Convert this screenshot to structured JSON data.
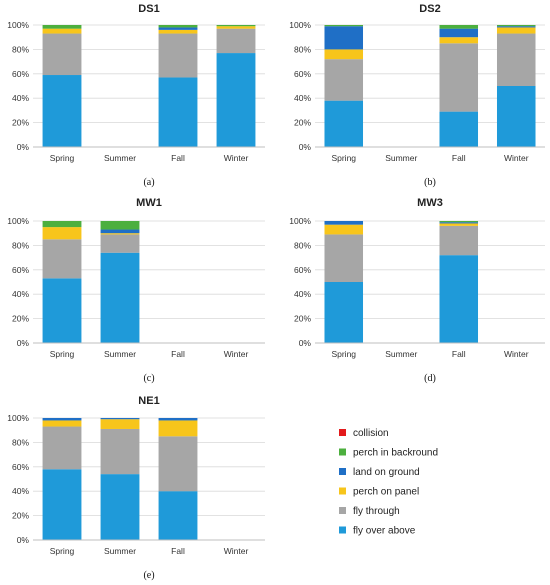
{
  "chart_data": [
    {
      "type": "bar",
      "stacked": true,
      "title": "DS1",
      "panel_label": "(a)",
      "categories": [
        "Spring",
        "Summer",
        "Fall",
        "Winter"
      ],
      "yticks": [
        "0%",
        "20%",
        "40%",
        "60%",
        "80%",
        "100%"
      ],
      "ylim": [
        0,
        100
      ],
      "series": [
        {
          "name": "fly over above",
          "values": [
            59,
            0,
            57,
            77
          ]
        },
        {
          "name": "fly through",
          "values": [
            34,
            0,
            36,
            20
          ]
        },
        {
          "name": "perch on panel",
          "values": [
            4,
            0,
            3,
            2
          ]
        },
        {
          "name": "land on ground",
          "values": [
            0,
            0,
            2,
            0
          ]
        },
        {
          "name": "perch in backround",
          "values": [
            3,
            0,
            2,
            1
          ]
        },
        {
          "name": "collision",
          "values": [
            0,
            0,
            0,
            0
          ]
        }
      ]
    },
    {
      "type": "bar",
      "stacked": true,
      "title": "DS2",
      "panel_label": "(b)",
      "categories": [
        "Spring",
        "Summer",
        "Fall",
        "Winter"
      ],
      "yticks": [
        "0%",
        "20%",
        "40%",
        "60%",
        "80%",
        "100%"
      ],
      "ylim": [
        0,
        100
      ],
      "series": [
        {
          "name": "fly over above",
          "values": [
            38,
            0,
            29,
            50
          ]
        },
        {
          "name": "fly through",
          "values": [
            34,
            0,
            56,
            43
          ]
        },
        {
          "name": "perch on panel",
          "values": [
            8,
            0,
            5,
            5
          ]
        },
        {
          "name": "land on ground",
          "values": [
            19,
            0,
            7,
            1
          ]
        },
        {
          "name": "perch in backround",
          "values": [
            1,
            0,
            3,
            1
          ]
        },
        {
          "name": "collision",
          "values": [
            0,
            0,
            0,
            0
          ]
        }
      ]
    },
    {
      "type": "bar",
      "stacked": true,
      "title": "MW1",
      "panel_label": "(c)",
      "categories": [
        "Spring",
        "Summer",
        "Fall",
        "Winter"
      ],
      "yticks": [
        "0%",
        "20%",
        "40%",
        "60%",
        "80%",
        "100%"
      ],
      "ylim": [
        0,
        100
      ],
      "series": [
        {
          "name": "fly over above",
          "values": [
            53,
            74,
            0,
            0
          ]
        },
        {
          "name": "fly through",
          "values": [
            32,
            15,
            0,
            0
          ]
        },
        {
          "name": "perch on panel",
          "values": [
            10,
            1,
            0,
            0
          ]
        },
        {
          "name": "land on ground",
          "values": [
            0,
            3,
            0,
            0
          ]
        },
        {
          "name": "perch in backround",
          "values": [
            5,
            7,
            0,
            0
          ]
        },
        {
          "name": "collision",
          "values": [
            0,
            0,
            0,
            0
          ]
        }
      ]
    },
    {
      "type": "bar",
      "stacked": true,
      "title": "MW3",
      "panel_label": "(d)",
      "categories": [
        "Spring",
        "Summer",
        "Fall",
        "Winter"
      ],
      "yticks": [
        "0%",
        "20%",
        "40%",
        "60%",
        "80%",
        "100%"
      ],
      "ylim": [
        0,
        100
      ],
      "series": [
        {
          "name": "fly over above",
          "values": [
            50,
            0,
            72,
            0
          ]
        },
        {
          "name": "fly through",
          "values": [
            39,
            0,
            24,
            0
          ]
        },
        {
          "name": "perch on panel",
          "values": [
            8,
            0,
            2,
            0
          ]
        },
        {
          "name": "land on ground",
          "values": [
            3,
            0,
            1,
            0
          ]
        },
        {
          "name": "perch in backround",
          "values": [
            0,
            0,
            1,
            0
          ]
        },
        {
          "name": "collision",
          "values": [
            0,
            0,
            0,
            0
          ]
        }
      ]
    },
    {
      "type": "bar",
      "stacked": true,
      "title": "NE1",
      "panel_label": "(e)",
      "categories": [
        "Spring",
        "Summer",
        "Fall",
        "Winter"
      ],
      "yticks": [
        "0%",
        "20%",
        "40%",
        "60%",
        "80%",
        "100%"
      ],
      "ylim": [
        0,
        100
      ],
      "series": [
        {
          "name": "fly over above",
          "values": [
            58,
            54,
            40,
            0
          ]
        },
        {
          "name": "fly through",
          "values": [
            35,
            37,
            45,
            0
          ]
        },
        {
          "name": "perch on panel",
          "values": [
            5,
            8,
            13,
            0
          ]
        },
        {
          "name": "land on ground",
          "values": [
            2,
            1,
            2,
            0
          ]
        },
        {
          "name": "perch in backround",
          "values": [
            0,
            0,
            0,
            0
          ]
        },
        {
          "name": "collision",
          "values": [
            0,
            0,
            0,
            0
          ]
        }
      ]
    }
  ],
  "legend": {
    "items": [
      {
        "name": "collision",
        "color": "#e31a1c"
      },
      {
        "name": "perch in backround",
        "color": "#4caf3e"
      },
      {
        "name": "land on ground",
        "color": "#1f6fc6"
      },
      {
        "name": "perch on panel",
        "color": "#f7c51b"
      },
      {
        "name": "fly through",
        "color": "#a6a6a6"
      },
      {
        "name": "fly over above",
        "color": "#1f9ad9"
      }
    ]
  },
  "series_colors": {
    "fly over above": "#1f9ad9",
    "fly through": "#a6a6a6",
    "perch on panel": "#f7c51b",
    "land on ground": "#1f6fc6",
    "perch in backround": "#4caf3e",
    "collision": "#e31a1c"
  }
}
